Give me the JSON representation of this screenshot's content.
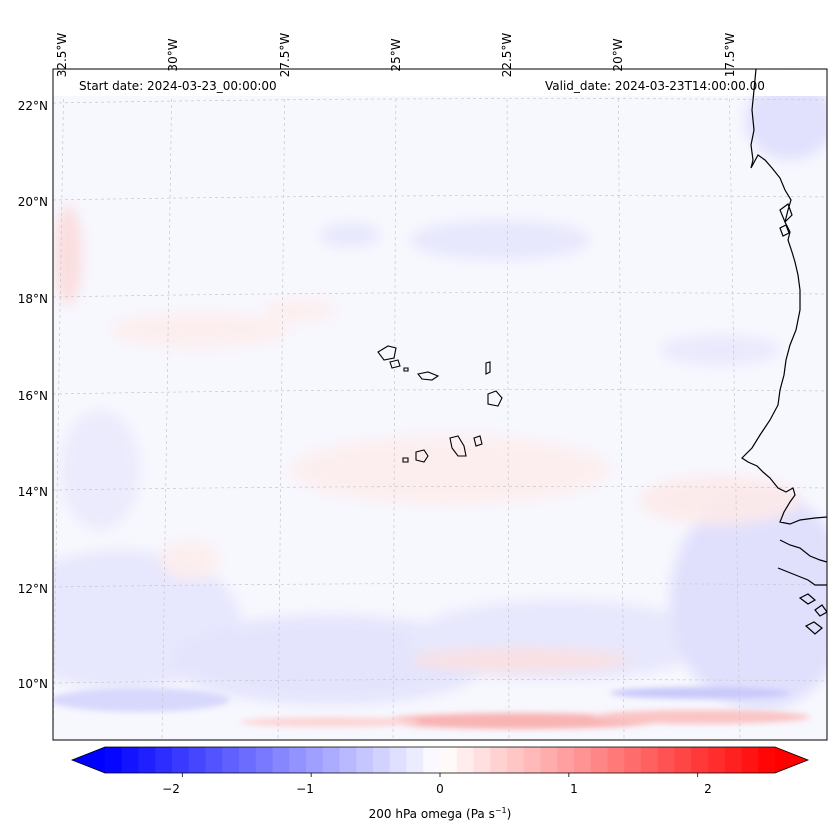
{
  "map": {
    "lon_labels": [
      "32.5°W",
      "30°W",
      "27.5°W",
      "25°W",
      "22.5°W",
      "20°W",
      "17.5°W"
    ],
    "lat_labels": [
      "22°N",
      "20°N",
      "18°N",
      "16°N",
      "14°N",
      "12°N",
      "10°N"
    ],
    "start_date": "Start date: 2024-03-23_00:00:00",
    "valid_date": "Valid_date: 2024-03-23T14:00:00.00",
    "islands": [
      "Santo Antão",
      "São Vicente",
      "Santa Luzia",
      "São Nicolau",
      "Sal",
      "Boa Vista",
      "Maio",
      "Santiago",
      "Fogo",
      "Brava"
    ]
  },
  "colorbar": {
    "label_prefix": "200 hPa omega (Pa s",
    "label_exp": "−1",
    "label_suffix": ")",
    "ticks": [
      "−2",
      "−1",
      "0",
      "1",
      "2"
    ],
    "tick_values": [
      -2,
      -1,
      0,
      1,
      2
    ],
    "range": [
      -2.6,
      2.6
    ],
    "levels": 40,
    "low_color": "#0000ff",
    "mid_color": "#ffffff",
    "high_color": "#ff0000"
  }
}
